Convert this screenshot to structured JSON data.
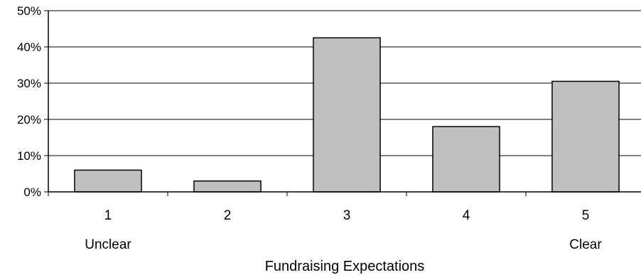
{
  "chart_data": {
    "type": "bar",
    "categories": [
      "1",
      "2",
      "3",
      "4",
      "5"
    ],
    "category_sublabels": [
      "Unclear",
      "",
      "",
      "",
      "Clear"
    ],
    "values": [
      6,
      3,
      42.5,
      18,
      30.5
    ],
    "value_unit": "%",
    "xlabel": "Fundraising Expectations",
    "ylabel": "",
    "ylim": [
      0,
      50
    ],
    "yticks": [
      "0%",
      "10%",
      "20%",
      "30%",
      "40%",
      "50%"
    ],
    "grid": true,
    "legend": "none",
    "colors": {
      "bar_fill": "#c0c0c0",
      "bar_stroke": "#000000",
      "grid": "#000000"
    }
  }
}
